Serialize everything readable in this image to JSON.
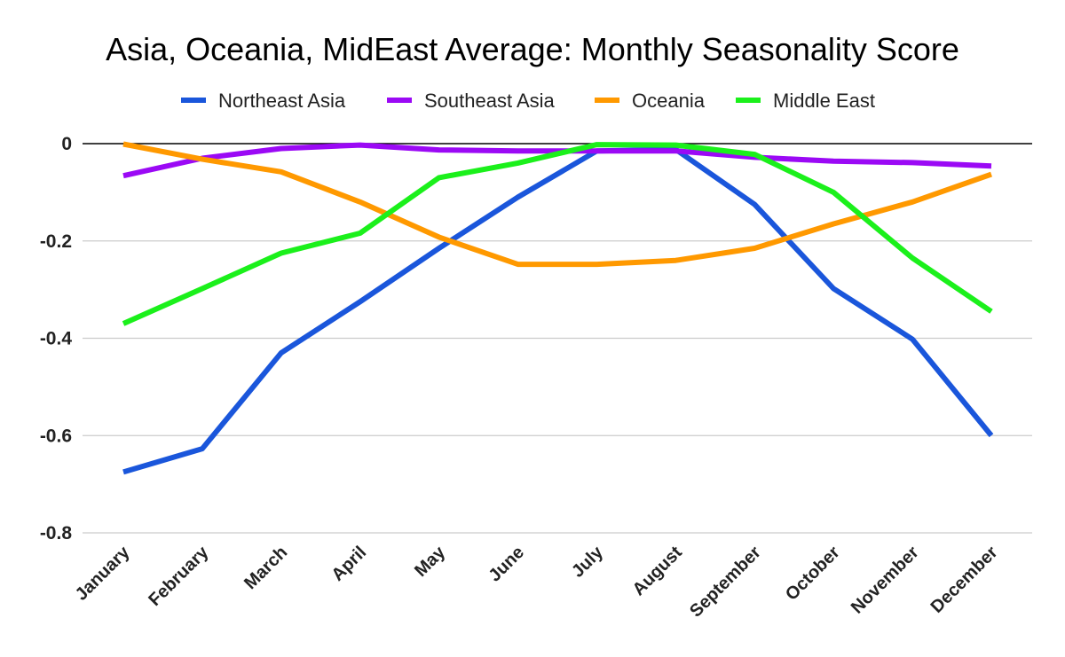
{
  "chart_data": {
    "type": "line",
    "title": "Asia, Oceania, MidEast Average: Monthly Seasonality Score",
    "categories": [
      "January",
      "February",
      "March",
      "April",
      "May",
      "June",
      "July",
      "August",
      "September",
      "October",
      "November",
      "December"
    ],
    "ylim": [
      -0.8,
      0
    ],
    "yticks": [
      0,
      -0.2,
      -0.4,
      -0.6,
      -0.8
    ],
    "ytick_labels": [
      "0",
      "-0.2",
      "-0.4",
      "-0.6",
      "-0.8"
    ],
    "grid": true,
    "legend_position": "top",
    "series": [
      {
        "name": "Northeast Asia",
        "color": "#1a56db",
        "values": [
          -0.675,
          -0.627,
          -0.43,
          -0.325,
          -0.215,
          -0.11,
          -0.015,
          -0.012,
          -0.125,
          -0.298,
          -0.402,
          -0.6
        ]
      },
      {
        "name": "Southeast Asia",
        "color": "#9b09f5",
        "values": [
          -0.066,
          -0.03,
          -0.01,
          -0.003,
          -0.013,
          -0.015,
          -0.015,
          -0.015,
          -0.028,
          -0.036,
          -0.039,
          -0.046
        ]
      },
      {
        "name": "Oceania",
        "color": "#ff9900",
        "values": [
          -0.001,
          -0.032,
          -0.058,
          -0.12,
          -0.192,
          -0.248,
          -0.248,
          -0.24,
          -0.215,
          -0.165,
          -0.12,
          -0.063
        ]
      },
      {
        "name": "Middle East",
        "color": "#1bf01b",
        "values": [
          -0.37,
          -0.298,
          -0.225,
          -0.184,
          -0.07,
          -0.04,
          -0.002,
          -0.003,
          -0.022,
          -0.1,
          -0.235,
          -0.345
        ]
      }
    ]
  }
}
